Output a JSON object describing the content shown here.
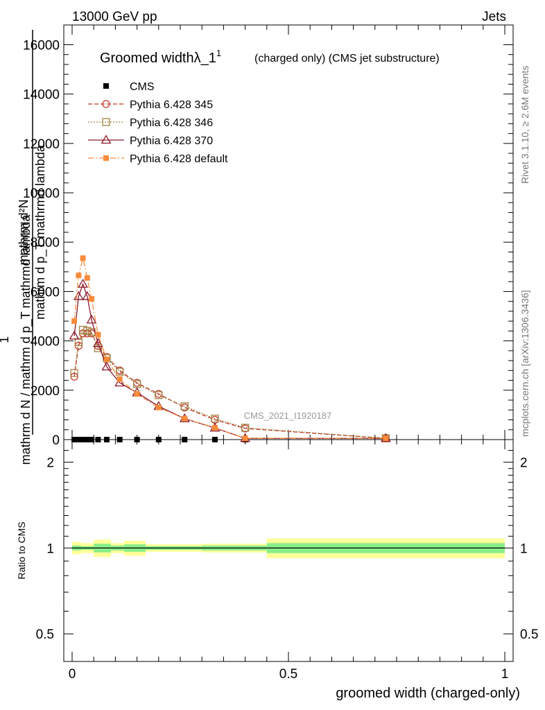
{
  "header": {
    "left": "13000 GeV pp",
    "right": "Jets"
  },
  "side_labels": {
    "rivet": "Rivet 3.1.10, ≥ 2.6M events",
    "mcplots": "mcplots.cern.ch [arXiv:1306.3436]"
  },
  "watermark": "CMS_2021_I1920187",
  "colors": {
    "cms": "#000000",
    "p345": "#c0392b",
    "p346": "#a08040",
    "p370": "#8b1a2b",
    "pdef": "#f98b3a",
    "band_outer": "#ffff99",
    "band_inner": "#88ee88"
  },
  "chart_data": [
    {
      "type": "line",
      "title": "Groomed widthλ_1",
      "title_sup": "1",
      "subtitle": "(charged only) (CMS jet substructure)",
      "ylabel_num": "1",
      "ylabel_den": "mathrm d N / mathrm d p_T mathrmd lambda",
      "ylabel_num2": "mathrm d²N",
      "ylabel_den2": "mathrm d N / mathrm d p_T mathrmd lambda",
      "ylabel_full_num": "mathrm d²N",
      "ylabel_full_den": "mathrm d p_T mathrmd lambda",
      "xlim": [
        0,
        1
      ],
      "ylim": [
        0,
        16800
      ],
      "yticks": [
        0,
        2000,
        4000,
        6000,
        8000,
        10000,
        12000,
        14000,
        16000
      ],
      "ytick_labels": [
        "0",
        "2000",
        "4000",
        "6000",
        "8000",
        "10000",
        "12000",
        "14000",
        "16000"
      ],
      "legend": [
        "CMS",
        "Pythia 6.428 345",
        "Pythia 6.428 346",
        "Pythia 6.428 370",
        "Pythia 6.428 default"
      ],
      "series": [
        {
          "name": "CMS",
          "marker": "square-filled",
          "x": [
            0.005,
            0.015,
            0.025,
            0.035,
            0.045,
            0.06,
            0.08,
            0.11,
            0.15,
            0.2,
            0.26,
            0.33,
            0.4
          ],
          "y": [
            0,
            0,
            0,
            0,
            0,
            0,
            0,
            0,
            0,
            0,
            0,
            0,
            0
          ]
        },
        {
          "name": "Pythia 6.428 345",
          "marker": "circle-open",
          "dash": "6,3",
          "x": [
            0.005,
            0.015,
            0.025,
            0.035,
            0.045,
            0.06,
            0.08,
            0.11,
            0.15,
            0.2,
            0.26,
            0.33,
            0.4,
            0.725
          ],
          "y": [
            2550,
            3800,
            4300,
            4300,
            4300,
            3800,
            3350,
            2800,
            2300,
            1850,
            1300,
            800,
            450,
            50
          ]
        },
        {
          "name": "Pythia 6.428 346",
          "marker": "square-open",
          "dash": "2,2",
          "x": [
            0.005,
            0.015,
            0.025,
            0.035,
            0.045,
            0.06,
            0.08,
            0.11,
            0.15,
            0.2,
            0.26,
            0.33,
            0.4,
            0.725
          ],
          "y": [
            2700,
            3950,
            4450,
            4400,
            4350,
            3700,
            3300,
            2750,
            2250,
            1800,
            1350,
            850,
            480,
            55
          ]
        },
        {
          "name": "Pythia 6.428 370",
          "marker": "triangle-open",
          "dash": "",
          "x": [
            0.005,
            0.015,
            0.025,
            0.035,
            0.045,
            0.06,
            0.08,
            0.11,
            0.15,
            0.2,
            0.26,
            0.33,
            0.4,
            0.725
          ],
          "y": [
            4200,
            5800,
            6300,
            5800,
            4850,
            3900,
            2950,
            2300,
            1900,
            1350,
            850,
            470,
            50,
            50
          ]
        },
        {
          "name": "Pythia 6.428 default",
          "marker": "square-filled",
          "dash": "8,3,2,3",
          "x": [
            0.005,
            0.015,
            0.025,
            0.035,
            0.045,
            0.06,
            0.08,
            0.11,
            0.15,
            0.2,
            0.26,
            0.33,
            0.4,
            0.725
          ],
          "y": [
            4800,
            6650,
            7350,
            6550,
            5700,
            4250,
            3250,
            2450,
            1850,
            1300,
            850,
            480,
            55,
            55
          ]
        }
      ]
    },
    {
      "type": "line",
      "title": "",
      "xlabel": "groomed width (charged-only)",
      "ylabel": "Ratio to CMS",
      "xlim": [
        0,
        1
      ],
      "ylim": [
        0.4,
        2.4
      ],
      "yscale": "log",
      "yticks": [
        0.5,
        1,
        2
      ],
      "ytick_labels": [
        "0.5",
        "1",
        "2"
      ],
      "xticks": [
        0,
        0.5,
        1
      ],
      "xtick_labels": [
        "0",
        "0.5",
        "1"
      ],
      "band_edges": [
        0,
        0.02,
        0.05,
        0.09,
        0.12,
        0.17,
        0.3,
        0.45,
        1.0
      ],
      "band_outer": [
        0.05,
        0.04,
        0.07,
        0.04,
        0.06,
        0.03,
        0.035,
        0.08
      ],
      "band_inner": [
        0.02,
        0.015,
        0.035,
        0.02,
        0.03,
        0.015,
        0.02,
        0.04
      ]
    }
  ]
}
